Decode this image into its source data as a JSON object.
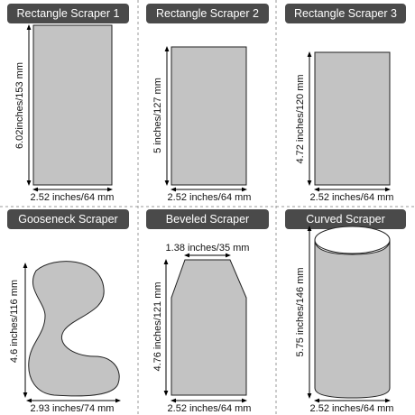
{
  "panels": [
    {
      "title": "Rectangle Scraper 1",
      "height_label": "6.02inches/153 mm",
      "width_label": "2.52 inches/64 mm"
    },
    {
      "title": "Rectangle Scraper 2",
      "height_label": "5 inches/127 mm",
      "width_label": "2.52 inches/64 mm"
    },
    {
      "title": "Rectangle Scraper 3",
      "height_label": "4.72 inches/120 mm",
      "width_label": "2.52 inches/64 mm"
    },
    {
      "title": "Gooseneck Scraper",
      "height_label": "4.6 inches/116 mm",
      "width_label": "2.93 inches/74 mm"
    },
    {
      "title": "Beveled Scraper",
      "top_label": "1.38 inches/35 mm",
      "height_label": "4.76 inches/121 mm",
      "width_label": "2.52 inches/64 mm"
    },
    {
      "title": "Curved Scraper",
      "height_label": "5.75 inches/146 mm",
      "width_label": "2.52 inches/64 mm"
    }
  ]
}
